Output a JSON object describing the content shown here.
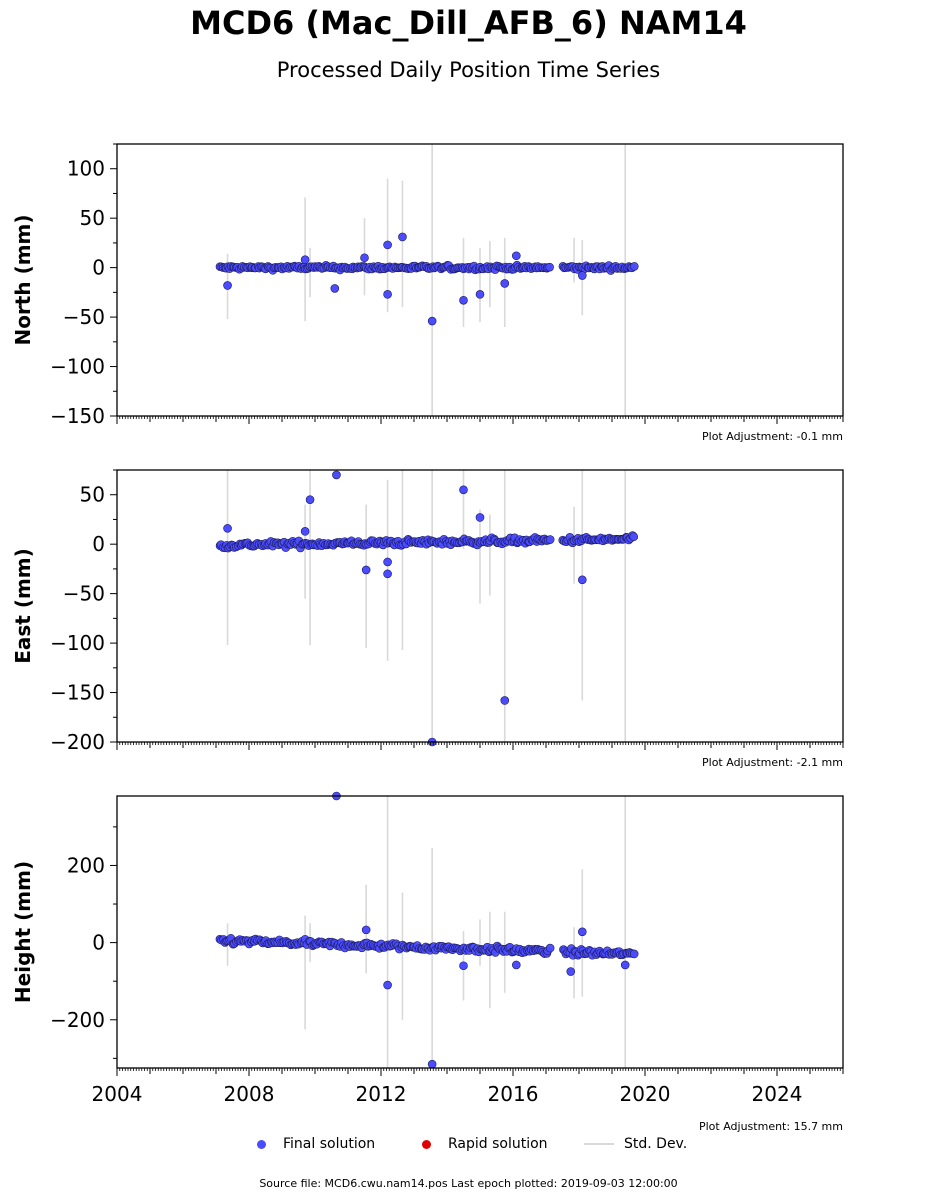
{
  "header": {
    "title": "MCD6 (Mac_Dill_AFB_6) NAM14",
    "subtitle": "Processed Daily Position Time Series"
  },
  "legend": {
    "final_label": "Final solution",
    "rapid_label": "Rapid solution",
    "std_label": "Std. Dev.",
    "final_color": "#4b4bff",
    "rapid_color": "#e00000",
    "std_color": "#d9d9d9"
  },
  "footer": {
    "source": "Source file: MCD6.cwu.nam14.pos  Last epoch plotted: 2019-09-03 12:00:00"
  },
  "chart_data": [
    {
      "type": "scatter",
      "ylabel": "North (mm)",
      "ylim": [
        -150,
        125
      ],
      "yticks": [
        -150,
        -100,
        -50,
        0,
        50,
        100
      ],
      "xlim": [
        2004,
        2026
      ],
      "xticks": [
        2004,
        2008,
        2012,
        2016,
        2020,
        2024
      ],
      "adjustment": "Plot Adjustment: -0.1 mm",
      "segments": [
        [
          2007.1,
          2017.1
        ],
        [
          2017.5,
          2019.67
        ]
      ],
      "trend": [
        0,
        0
      ],
      "noise": 2,
      "outliers": [
        [
          2007.35,
          -18
        ],
        [
          2009.7,
          8
        ],
        [
          2010.6,
          -21
        ],
        [
          2011.5,
          10
        ],
        [
          2012.2,
          23
        ],
        [
          2012.2,
          -27
        ],
        [
          2012.65,
          31
        ],
        [
          2013.55,
          -54
        ],
        [
          2014.5,
          -33
        ],
        [
          2015.0,
          -27
        ],
        [
          2015.75,
          -16
        ],
        [
          2016.1,
          12
        ],
        [
          2018.1,
          -8
        ]
      ],
      "errorbars": [
        [
          2007.35,
          -52,
          14
        ],
        [
          2009.7,
          -54,
          71
        ],
        [
          2009.85,
          -30,
          20
        ],
        [
          2011.5,
          -28,
          50
        ],
        [
          2012.2,
          -45,
          90
        ],
        [
          2012.65,
          -40,
          88
        ],
        [
          2013.55,
          -150,
          125
        ],
        [
          2014.5,
          -60,
          30
        ],
        [
          2015.0,
          -55,
          20
        ],
        [
          2015.3,
          -40,
          27
        ],
        [
          2015.75,
          -60,
          30
        ],
        [
          2017.85,
          -15,
          30
        ],
        [
          2018.1,
          -48,
          28
        ],
        [
          2019.4,
          -150,
          125
        ]
      ]
    },
    {
      "type": "scatter",
      "ylabel": "East (mm)",
      "ylim": [
        -200,
        75
      ],
      "yticks": [
        -200,
        -150,
        -100,
        -50,
        0,
        50
      ],
      "xlim": [
        2004,
        2026
      ],
      "xticks": [
        2004,
        2008,
        2012,
        2016,
        2020,
        2024
      ],
      "adjustment": "Plot Adjustment: -2.1 mm",
      "segments": [
        [
          2007.1,
          2017.1
        ],
        [
          2017.5,
          2019.67
        ]
      ],
      "trend": [
        -1,
        5
      ],
      "noise": 3,
      "outliers": [
        [
          2007.35,
          16
        ],
        [
          2009.7,
          13
        ],
        [
          2009.85,
          45
        ],
        [
          2010.65,
          70
        ],
        [
          2011.55,
          -26
        ],
        [
          2012.2,
          -30
        ],
        [
          2012.2,
          -18
        ],
        [
          2013.55,
          -200
        ],
        [
          2014.5,
          55
        ],
        [
          2015.0,
          27
        ],
        [
          2015.75,
          -158
        ],
        [
          2018.1,
          -36
        ]
      ],
      "errorbars": [
        [
          2007.35,
          -102,
          75
        ],
        [
          2009.7,
          -55,
          40
        ],
        [
          2009.85,
          -102,
          75
        ],
        [
          2011.55,
          -105,
          40
        ],
        [
          2012.2,
          -118,
          65
        ],
        [
          2012.65,
          -107,
          75
        ],
        [
          2013.55,
          -200,
          75
        ],
        [
          2014.5,
          -5,
          75
        ],
        [
          2015.0,
          -60,
          35
        ],
        [
          2015.3,
          -52,
          30
        ],
        [
          2015.75,
          -200,
          75
        ],
        [
          2017.85,
          -40,
          38
        ],
        [
          2018.1,
          -158,
          75
        ],
        [
          2019.4,
          -200,
          75
        ]
      ]
    },
    {
      "type": "scatter",
      "ylabel": "Height (mm)",
      "ylim": [
        -325,
        380
      ],
      "yticks": [
        -200,
        0,
        200
      ],
      "xlim": [
        2004,
        2026
      ],
      "xticks": [
        2004,
        2008,
        2012,
        2016,
        2020,
        2024
      ],
      "xticklabels": [
        "2004",
        "2008",
        "2012",
        "2016",
        "2020",
        "2024"
      ],
      "adjustment": "Plot Adjustment: 15.7 mm",
      "segments": [
        [
          2007.1,
          2017.1
        ],
        [
          2017.5,
          2019.67
        ]
      ],
      "trend": [
        5,
        -30
      ],
      "noise": 8,
      "outliers": [
        [
          2010.65,
          380
        ],
        [
          2011.55,
          33
        ],
        [
          2012.2,
          -110
        ],
        [
          2013.55,
          -315
        ],
        [
          2014.5,
          -60
        ],
        [
          2016.1,
          -58
        ],
        [
          2017.75,
          -75
        ],
        [
          2018.1,
          28
        ],
        [
          2019.4,
          -58
        ]
      ],
      "errorbars": [
        [
          2007.35,
          -60,
          50
        ],
        [
          2009.7,
          -225,
          70
        ],
        [
          2009.85,
          -50,
          50
        ],
        [
          2011.55,
          -80,
          150
        ],
        [
          2012.2,
          -325,
          380
        ],
        [
          2012.65,
          -200,
          130
        ],
        [
          2013.55,
          -325,
          245
        ],
        [
          2014.5,
          -150,
          30
        ],
        [
          2015.0,
          -60,
          60
        ],
        [
          2015.3,
          -170,
          80
        ],
        [
          2015.75,
          -130,
          80
        ],
        [
          2017.85,
          -145,
          40
        ],
        [
          2018.1,
          -140,
          190
        ],
        [
          2019.4,
          -325,
          380
        ]
      ]
    }
  ]
}
